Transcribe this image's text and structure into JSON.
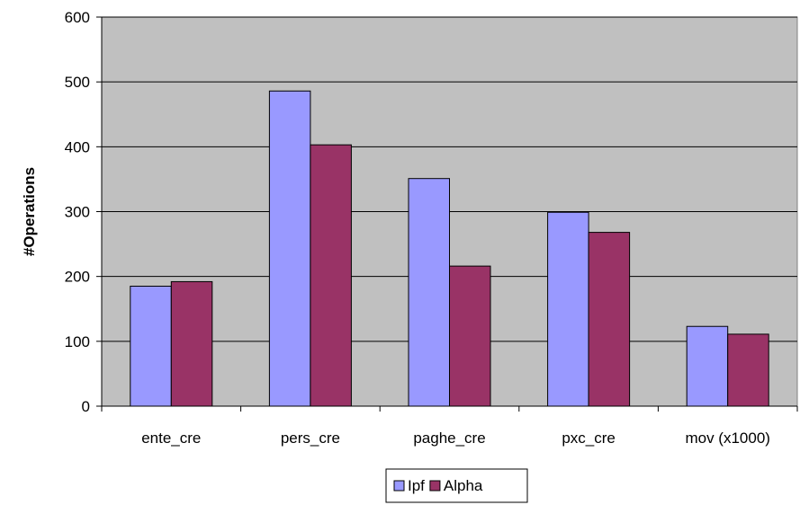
{
  "chart_data": {
    "type": "bar",
    "title": "",
    "xlabel": "",
    "ylabel": "#Operations",
    "categories": [
      "ente_cre",
      "pers_cre",
      "paghe_cre",
      "pxc_cre",
      "mov (x1000)"
    ],
    "series": [
      {
        "name": "Ipf",
        "color": "#9999ff",
        "values": [
          185,
          486,
          351,
          299,
          123
        ]
      },
      {
        "name": "Alpha",
        "color": "#993366",
        "values": [
          192,
          403,
          216,
          268,
          111
        ]
      }
    ],
    "ylim": [
      0,
      600
    ],
    "yticks": [
      "0",
      "100",
      "200",
      "300",
      "400",
      "500",
      "600"
    ],
    "grid": true,
    "plot_background": "#c0c0c0",
    "legend_position": "bottom"
  }
}
